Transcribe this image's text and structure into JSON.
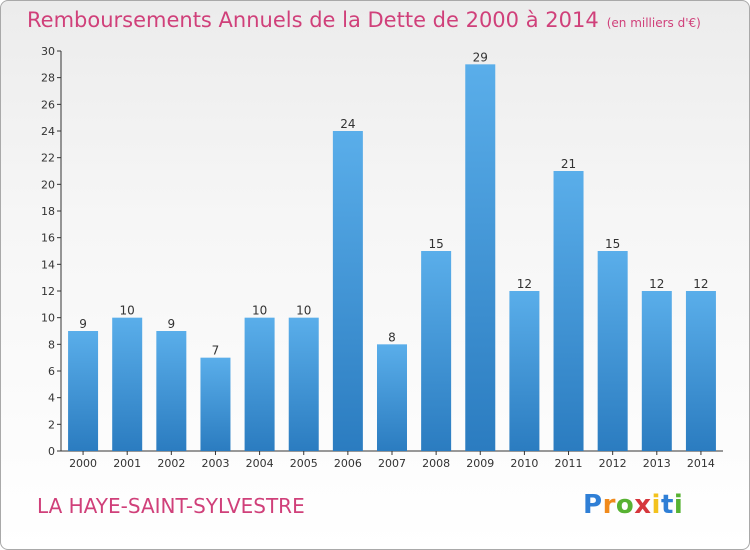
{
  "chart_data": {
    "type": "bar",
    "title": "Remboursements Annuels de la Dette de 2000 à 2014",
    "subtitle": "(en milliers d'€)",
    "categories": [
      "2000",
      "2001",
      "2002",
      "2003",
      "2004",
      "2005",
      "2006",
      "2007",
      "2008",
      "2009",
      "2010",
      "2011",
      "2012",
      "2013",
      "2014"
    ],
    "values": [
      9,
      10,
      9,
      7,
      10,
      10,
      24,
      8,
      15,
      29,
      12,
      21,
      15,
      12,
      12
    ],
    "ylim": [
      0,
      30
    ],
    "yticks": [
      0,
      2,
      4,
      6,
      8,
      10,
      12,
      14,
      16,
      18,
      20,
      22,
      24,
      26,
      28,
      30
    ],
    "grid": false,
    "data_labels": true,
    "bar_color_top": "#5aaeea",
    "bar_color_bottom": "#2b7cc0"
  },
  "footer": {
    "town": "LA HAYE-SAINT-SYLVESTRE",
    "brand_letters": [
      {
        "char": "P",
        "color": "#2f7fd6"
      },
      {
        "char": "r",
        "color": "#f08a1c"
      },
      {
        "char": "o",
        "color": "#57b232"
      },
      {
        "char": "x",
        "color": "#d6363c"
      },
      {
        "char": "i",
        "color": "#f3c21d"
      },
      {
        "char": "t",
        "color": "#2f7fd6"
      },
      {
        "char": "i",
        "color": "#57b232"
      }
    ]
  },
  "colors": {
    "title": "#d0407a",
    "axis": "#333333",
    "label": "#333333"
  }
}
